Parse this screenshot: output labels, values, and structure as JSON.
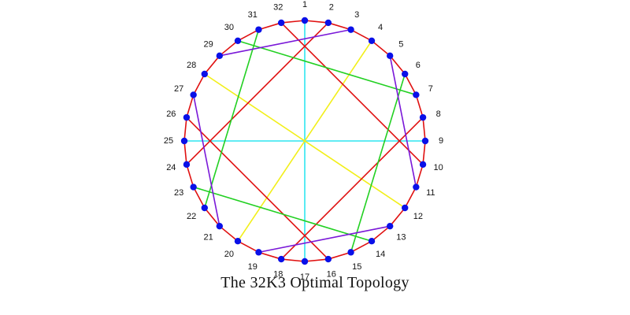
{
  "caption": "The 32K3 Optimal Topology",
  "node_count": 32,
  "node_labels": [
    "1",
    "2",
    "3",
    "4",
    "5",
    "6",
    "7",
    "8",
    "9",
    "10",
    "11",
    "12",
    "13",
    "14",
    "15",
    "16",
    "17",
    "18",
    "19",
    "20",
    "21",
    "22",
    "23",
    "24",
    "25",
    "26",
    "27",
    "28",
    "29",
    "30",
    "31",
    "32"
  ],
  "colors": {
    "ring": "#e01010",
    "node": "#0a10e8",
    "cyan": "#2ee6f0",
    "yellow": "#f2ef1a",
    "green": "#22d022",
    "purple": "#7a18d8",
    "red": "#e01010"
  },
  "chords": [
    {
      "from": 1,
      "to": 17,
      "color": "cyan"
    },
    {
      "from": 9,
      "to": 25,
      "color": "cyan"
    },
    {
      "from": 4,
      "to": 20,
      "color": "yellow"
    },
    {
      "from": 12,
      "to": 28,
      "color": "yellow"
    },
    {
      "from": 2,
      "to": 24,
      "color": "red"
    },
    {
      "from": 10,
      "to": 32,
      "color": "red"
    },
    {
      "from": 8,
      "to": 18,
      "color": "red"
    },
    {
      "from": 16,
      "to": 26,
      "color": "red"
    },
    {
      "from": 6,
      "to": 15,
      "color": "green"
    },
    {
      "from": 7,
      "to": 30,
      "color": "green"
    },
    {
      "from": 14,
      "to": 23,
      "color": "green"
    },
    {
      "from": 22,
      "to": 31,
      "color": "green"
    },
    {
      "from": 3,
      "to": 29,
      "color": "purple"
    },
    {
      "from": 5,
      "to": 11,
      "color": "purple"
    },
    {
      "from": 13,
      "to": 19,
      "color": "purple"
    },
    {
      "from": 21,
      "to": 27,
      "color": "purple"
    }
  ]
}
